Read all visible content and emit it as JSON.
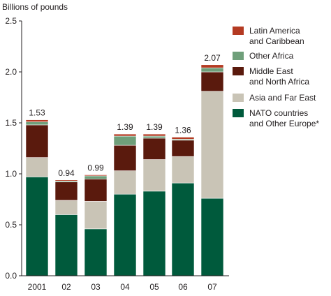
{
  "chart_data": {
    "type": "bar",
    "stacked": true,
    "title": "",
    "ylabel": "Billions of pounds",
    "xlabel": "",
    "ylim": [
      0,
      2.5
    ],
    "yticks": [
      "0.0",
      "0.5",
      "1.0",
      "1.5",
      "2.0",
      "2.5"
    ],
    "grid": false,
    "legend_position": "top-right",
    "categories": [
      "2001",
      "02",
      "03",
      "04",
      "05",
      "06",
      "07"
    ],
    "totals_labels": [
      "1.53",
      "0.94",
      "0.99",
      "1.39",
      "1.39",
      "1.36",
      "2.07"
    ],
    "series": [
      {
        "name": "NATO countries\nand Other Europe*",
        "color": "#005a3c",
        "values": [
          0.97,
          0.6,
          0.46,
          0.8,
          0.83,
          0.91,
          0.76
        ]
      },
      {
        "name": "Asia and Far East",
        "color": "#c9c4b6",
        "values": [
          0.19,
          0.14,
          0.27,
          0.23,
          0.31,
          0.26,
          1.05
        ]
      },
      {
        "name": "Middle East\nand North Africa",
        "color": "#5a1a0d",
        "values": [
          0.32,
          0.18,
          0.22,
          0.25,
          0.21,
          0.16,
          0.19
        ]
      },
      {
        "name": "Other Africa",
        "color": "#6f9f7a",
        "values": [
          0.03,
          0.01,
          0.03,
          0.09,
          0.02,
          0.01,
          0.04
        ]
      },
      {
        "name": "Latin America\nand Caribbean",
        "color": "#b43a22",
        "values": [
          0.02,
          0.01,
          0.01,
          0.02,
          0.02,
          0.02,
          0.03
        ]
      }
    ]
  }
}
